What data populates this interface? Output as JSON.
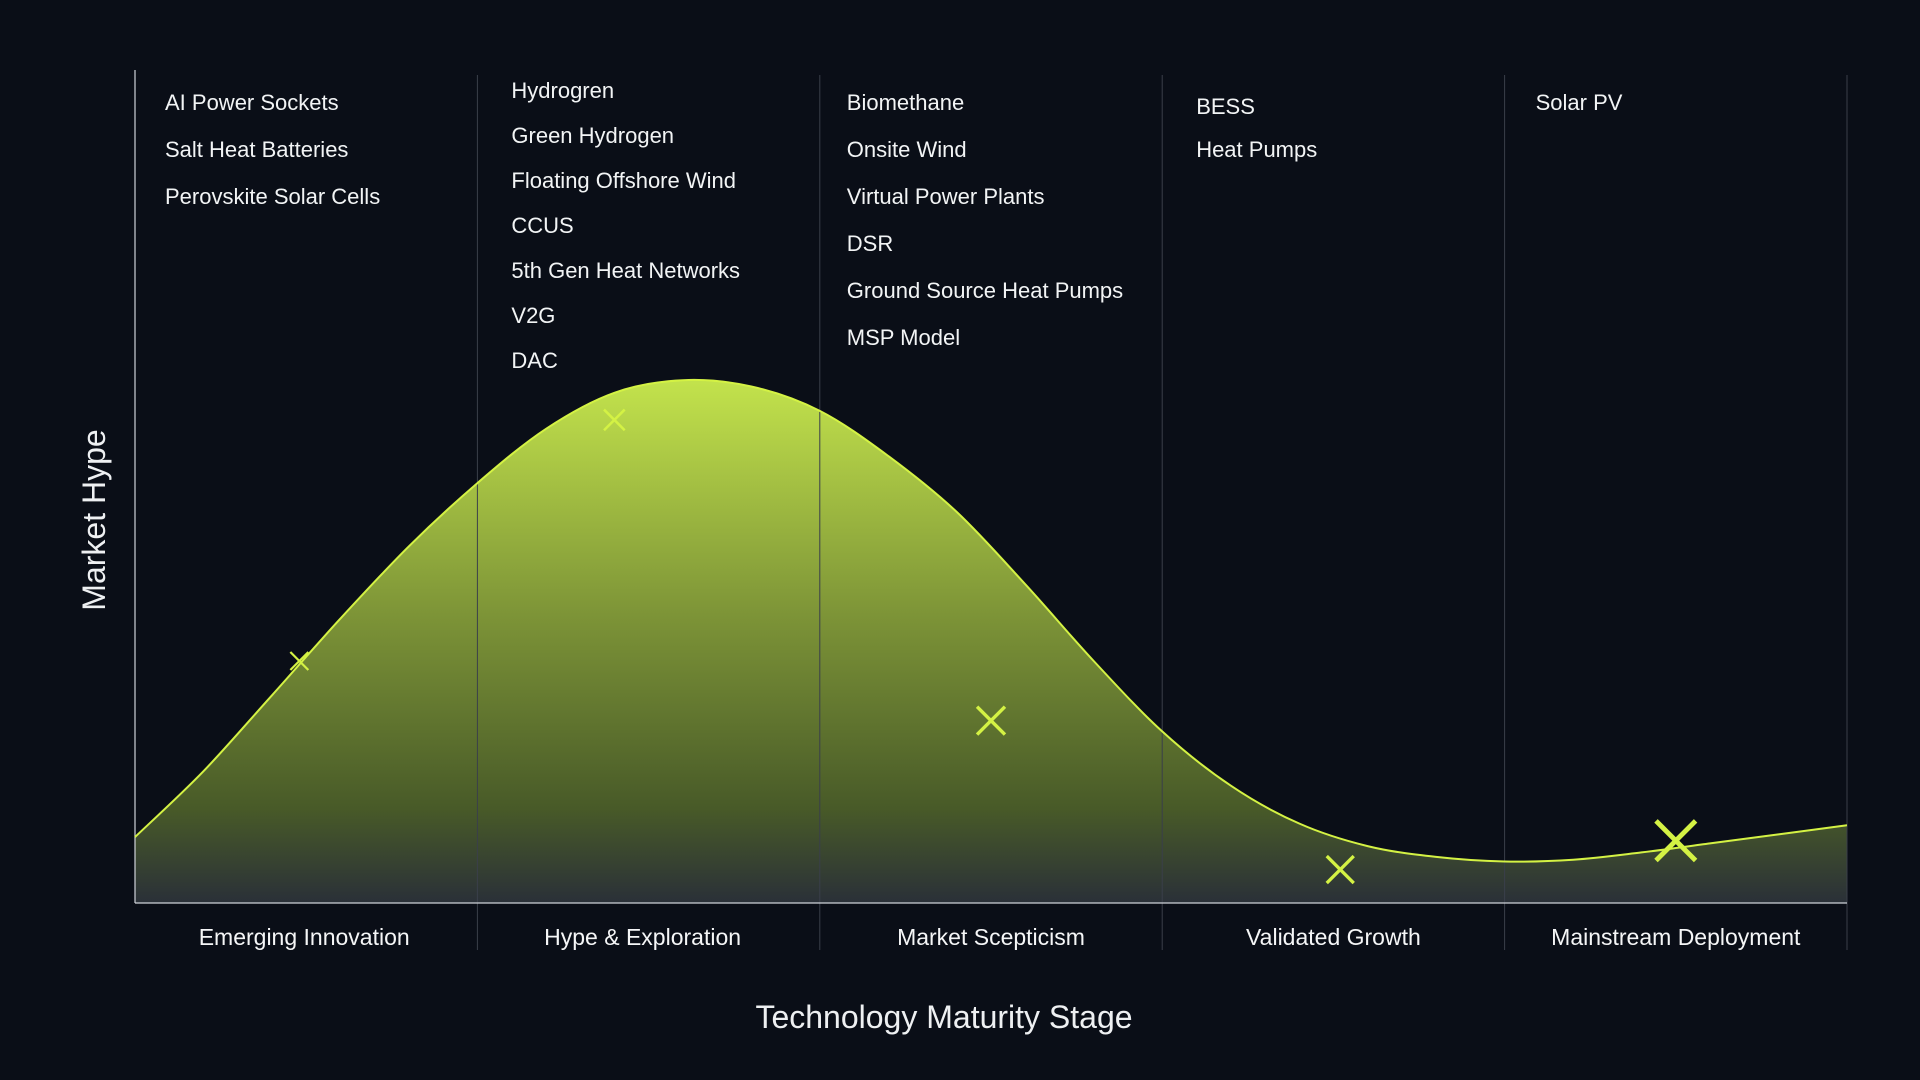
{
  "chart_data": {
    "type": "area",
    "xlabel": "Technology Maturity Stage",
    "ylabel": "Market Hype",
    "grid": "vertical separators between stages",
    "colors": {
      "background": "#0a0e17",
      "curve": "#d4f244",
      "marker": "#d4f244",
      "divider": "#3a3f4a",
      "text": "#f2f4f5"
    },
    "categories": [
      "Emerging Innovation",
      "Hype & Exploration",
      "Market Scepticism",
      "Validated Growth",
      "Mainstream Deployment"
    ],
    "stages": [
      {
        "name": "Emerging Innovation",
        "technologies": [
          "AI Power Sockets",
          "Salt Heat Batteries",
          "Perovskite Solar Cells"
        ]
      },
      {
        "name": "Hype & Exploration",
        "technologies": [
          "Hydrogren",
          "Green Hydrogen",
          "Floating Offshore Wind",
          "CCUS",
          "5th Gen Heat Networks",
          "V2G",
          "DAC"
        ]
      },
      {
        "name": "Market Scepticism",
        "technologies": [
          "Biomethane",
          "Onsite Wind",
          "Virtual Power Plants",
          "DSR",
          "Ground Source Heat Pumps",
          "MSP Model"
        ]
      },
      {
        "name": "Validated Growth",
        "technologies": [
          "BESS",
          "Heat Pumps"
        ]
      },
      {
        "name": "Mainstream Deployment",
        "technologies": [
          "Solar PV"
        ]
      }
    ],
    "x_range": [
      0,
      5
    ],
    "y_range": [
      0,
      100
    ],
    "curve": [
      [
        0.0,
        7.3
      ],
      [
        0.2,
        14.6
      ],
      [
        0.4,
        23.0
      ],
      [
        0.6,
        31.5
      ],
      [
        0.8,
        39.5
      ],
      [
        1.0,
        46.5
      ],
      [
        1.2,
        52.5
      ],
      [
        1.4,
        56.5
      ],
      [
        1.6,
        57.9
      ],
      [
        1.8,
        57.2
      ],
      [
        2.0,
        54.5
      ],
      [
        2.2,
        49.5
      ],
      [
        2.4,
        43.3
      ],
      [
        2.6,
        35.3
      ],
      [
        2.8,
        26.8
      ],
      [
        3.0,
        19.0
      ],
      [
        3.2,
        13.0
      ],
      [
        3.4,
        8.8
      ],
      [
        3.6,
        6.3
      ],
      [
        3.8,
        5.1
      ],
      [
        4.0,
        4.6
      ],
      [
        4.2,
        4.8
      ],
      [
        4.4,
        5.6
      ],
      [
        4.6,
        6.6
      ],
      [
        4.8,
        7.6
      ],
      [
        5.0,
        8.6
      ]
    ],
    "markers": [
      {
        "x": 0.48,
        "y": 26.8,
        "size": 1
      },
      {
        "x": 1.4,
        "y": 53.5,
        "size": 1.15
      },
      {
        "x": 2.5,
        "y": 20.2,
        "size": 1.55
      },
      {
        "x": 3.52,
        "y": 3.7,
        "size": 1.5
      },
      {
        "x": 4.5,
        "y": 6.9,
        "size": 2.2
      }
    ]
  }
}
